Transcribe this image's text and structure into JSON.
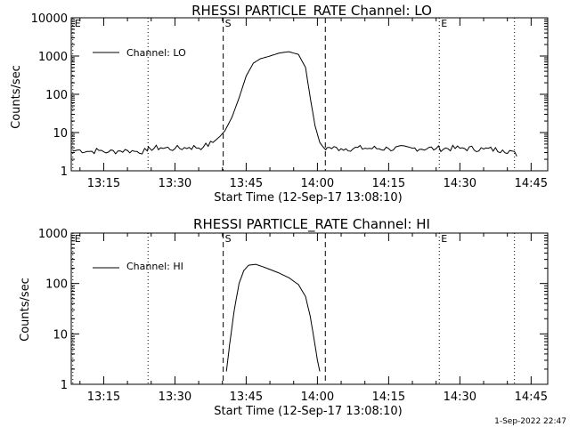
{
  "footer": {
    "timestamp": "1-Sep-2022 22:47"
  },
  "colors": {
    "background": "#ffffff",
    "foreground": "#000000"
  },
  "chart_data": [
    {
      "type": "line",
      "title": "RHESSI PARTICLE_RATE Channel: LO",
      "xlabel": "Start Time (12-Sep-17 13:08:10)",
      "ylabel": "Counts/sec",
      "log_y": true,
      "xlim": [
        "13:08:10",
        "14:48:30"
      ],
      "ylim": [
        1,
        10000
      ],
      "x_ticks": [
        "13:15",
        "13:30",
        "13:45",
        "14:00",
        "14:15",
        "14:30",
        "14:45"
      ],
      "y_ticks": [
        "1",
        "10",
        "100",
        "1000",
        "10000"
      ],
      "legend": {
        "position": "top-left",
        "entries": [
          "Channel: LO"
        ]
      },
      "grid": false,
      "markers": [
        {
          "label": "E",
          "time": "13:08:30",
          "style": "dotted"
        },
        {
          "label": "",
          "time": "13:24:20",
          "style": "dotted"
        },
        {
          "label": "S",
          "time": "13:40:10",
          "style": "dashed"
        },
        {
          "label": "",
          "time": "14:01:40",
          "style": "dashed"
        },
        {
          "label": "E",
          "time": "14:25:40",
          "style": "dotted"
        },
        {
          "label": "",
          "time": "14:41:30",
          "style": "dotted"
        }
      ],
      "series": [
        {
          "name": "Channel: LO",
          "x": [
            "13:08:30",
            "13:10:00",
            "13:12:00",
            "13:14:00",
            "13:16:00",
            "13:18:00",
            "13:20:00",
            "13:22:00",
            "13:24:10",
            "13:24:40",
            "13:27:00",
            "13:30:00",
            "13:33:00",
            "13:36:00",
            "13:38:00",
            "13:39:30",
            "13:40:30",
            "13:42:00",
            "13:43:30",
            "13:45:00",
            "13:46:30",
            "13:48:00",
            "13:50:00",
            "13:52:00",
            "13:54:00",
            "13:56:00",
            "13:57:30",
            "13:58:30",
            "13:59:30",
            "14:00:30",
            "14:01:30",
            "14:02:00",
            "14:05:00",
            "14:10:00",
            "14:15:00",
            "14:20:00",
            "14:25:00",
            "14:30:00",
            "14:35:00",
            "14:39:00",
            "14:41:00",
            "14:42:00"
          ],
          "y": [
            3.3,
            3.5,
            3.2,
            3.4,
            3.1,
            3.3,
            3.4,
            3.2,
            3.3,
            3.9,
            4.0,
            3.8,
            4.1,
            4.2,
            5.5,
            8,
            11,
            25,
            80,
            300,
            650,
            850,
            1000,
            1200,
            1300,
            1100,
            500,
            80,
            15,
            5.5,
            3.8,
            4.0,
            3.8,
            3.9,
            3.8,
            3.9,
            3.8,
            3.9,
            3.7,
            3.5,
            3.3,
            2.4
          ]
        }
      ]
    },
    {
      "type": "line",
      "title": "RHESSI PARTICLE_RATE Channel: HI",
      "xlabel": "Start Time (12-Sep-17 13:08:10)",
      "ylabel": "Counts/sec",
      "log_y": true,
      "xlim": [
        "13:08:10",
        "14:48:30"
      ],
      "ylim": [
        1,
        1000
      ],
      "x_ticks": [
        "13:15",
        "13:30",
        "13:45",
        "14:00",
        "14:15",
        "14:30",
        "14:45"
      ],
      "y_ticks": [
        "1",
        "10",
        "100",
        "1000"
      ],
      "legend": {
        "position": "top-left",
        "entries": [
          "Channel: HI"
        ]
      },
      "grid": false,
      "markers": [
        {
          "label": "E",
          "time": "13:08:30",
          "style": "dotted"
        },
        {
          "label": "",
          "time": "13:24:20",
          "style": "dotted"
        },
        {
          "label": "S",
          "time": "13:40:10",
          "style": "dashed"
        },
        {
          "label": "",
          "time": "14:01:40",
          "style": "dashed"
        },
        {
          "label": "E",
          "time": "14:25:40",
          "style": "dotted"
        },
        {
          "label": "",
          "time": "14:41:30",
          "style": "dotted"
        }
      ],
      "series": [
        {
          "name": "Channel: HI",
          "x": [
            "13:40:50",
            "13:41:30",
            "13:42:30",
            "13:43:30",
            "13:44:30",
            "13:45:30",
            "13:47:00",
            "13:48:30",
            "13:50:00",
            "13:52:00",
            "13:54:00",
            "13:56:00",
            "13:57:30",
            "13:58:30",
            "13:59:30",
            "14:00:00",
            "14:00:30"
          ],
          "y": [
            1.8,
            6,
            30,
            100,
            180,
            230,
            240,
            215,
            190,
            160,
            130,
            95,
            55,
            22,
            6,
            3,
            1.8
          ]
        }
      ]
    }
  ]
}
